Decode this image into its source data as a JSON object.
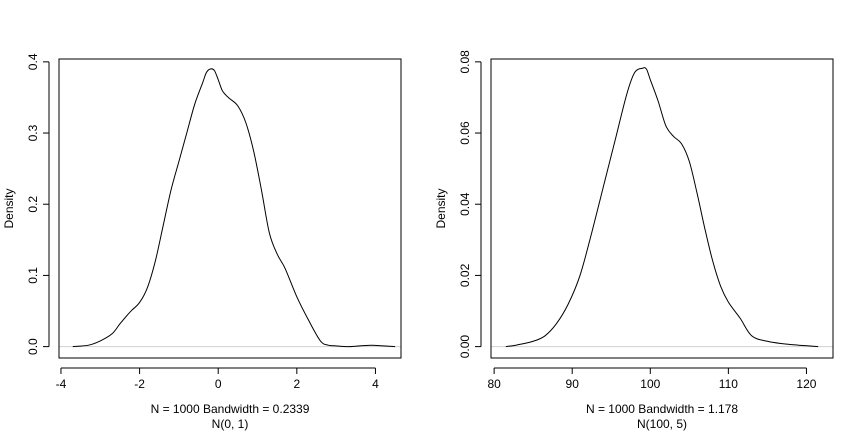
{
  "chart_data": [
    {
      "type": "line",
      "title": "",
      "xlabel": "N = 1000   Bandwidth = 0.2339",
      "xlabel2": "N(0, 1)",
      "ylabel": "Density",
      "xlim": [
        -4.05,
        4.65
      ],
      "ylim": [
        -0.016,
        0.404
      ],
      "xticks": [
        -4,
        -2,
        0,
        2,
        4
      ],
      "xtick_labels": [
        "-4",
        "-2",
        "0",
        "2",
        "4"
      ],
      "yticks": [
        0.0,
        0.1,
        0.2,
        0.3,
        0.4
      ],
      "ytick_labels": [
        "0.0",
        "0.1",
        "0.2",
        "0.3",
        "0.4"
      ],
      "grid": false,
      "series": [
        {
          "x": [
            -3.7,
            -3.3,
            -3.0,
            -2.7,
            -2.5,
            -2.3,
            -2.2,
            -2.0,
            -1.8,
            -1.6,
            -1.4,
            -1.2,
            -1.0,
            -0.8,
            -0.6,
            -0.4,
            -0.3,
            -0.2,
            -0.1,
            0.0,
            0.1,
            0.2,
            0.3,
            0.5,
            0.7,
            0.9,
            1.1,
            1.3,
            1.5,
            1.7,
            2.0,
            2.3,
            2.6,
            2.8,
            3.0,
            3.3,
            3.6,
            3.9,
            4.2,
            4.5
          ],
          "y": [
            0.0,
            0.002,
            0.008,
            0.018,
            0.032,
            0.045,
            0.051,
            0.062,
            0.083,
            0.12,
            0.17,
            0.22,
            0.26,
            0.3,
            0.34,
            0.37,
            0.385,
            0.39,
            0.388,
            0.375,
            0.36,
            0.353,
            0.348,
            0.338,
            0.315,
            0.275,
            0.22,
            0.16,
            0.13,
            0.11,
            0.07,
            0.037,
            0.008,
            0.002,
            0.001,
            0.0,
            0.001,
            0.002,
            0.001,
            0.0
          ]
        }
      ]
    },
    {
      "type": "line",
      "title": "",
      "xlabel": "N = 1000   Bandwidth = 1.178",
      "xlabel2": "N(100, 5)",
      "ylabel": "Density",
      "xlim": [
        79.6,
        123.4
      ],
      "ylim": [
        -0.0032,
        0.0808
      ],
      "xticks": [
        80,
        90,
        100,
        110,
        120
      ],
      "xtick_labels": [
        "80",
        "90",
        "100",
        "110",
        "120"
      ],
      "yticks": [
        0.0,
        0.02,
        0.04,
        0.06,
        0.08
      ],
      "ytick_labels": [
        "0.00",
        "0.02",
        "0.04",
        "0.06",
        "0.08"
      ],
      "grid": false,
      "series": [
        {
          "x": [
            81.5,
            83,
            85,
            86.5,
            88,
            89.5,
            91,
            92.5,
            94,
            95.5,
            97,
            98,
            99,
            99.5,
            100,
            101,
            102,
            103,
            104,
            105,
            106,
            107,
            108,
            109,
            110,
            111.5,
            113,
            115,
            117,
            119,
            121.5
          ],
          "y": [
            0.0,
            0.0005,
            0.0015,
            0.003,
            0.0065,
            0.012,
            0.02,
            0.032,
            0.045,
            0.058,
            0.071,
            0.077,
            0.0782,
            0.078,
            0.075,
            0.069,
            0.062,
            0.059,
            0.057,
            0.052,
            0.043,
            0.033,
            0.024,
            0.017,
            0.0125,
            0.008,
            0.003,
            0.0015,
            0.0008,
            0.0004,
            0.0
          ]
        }
      ]
    }
  ]
}
